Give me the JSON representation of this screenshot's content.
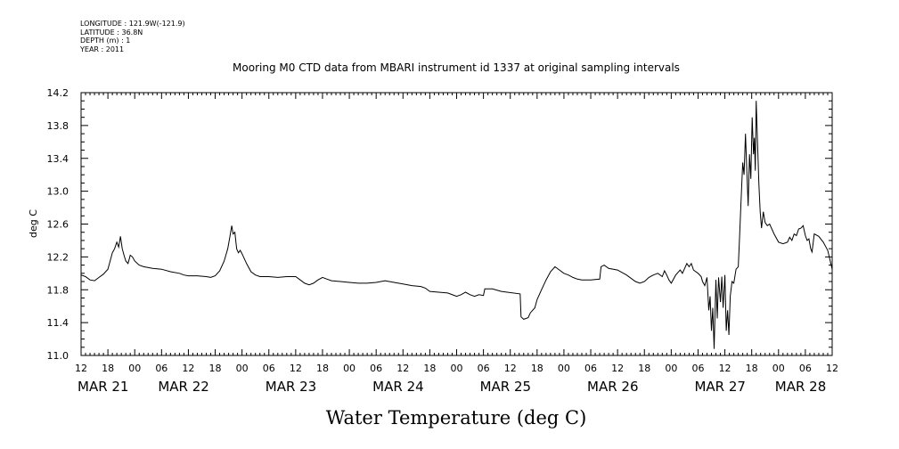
{
  "header_info": [
    "LONGITUDE : 121.9W(-121.9)",
    "LATITUDE : 36.8N",
    "DEPTH (m) : 1",
    "YEAR : 2011"
  ],
  "chart_data": {
    "type": "line",
    "title": "Mooring M0 CTD data from MBARI instrument id 1337 at original sampling intervals",
    "subtitle": "Water Temperature (deg C)",
    "ylabel": "deg C",
    "ylim": [
      11.0,
      14.2
    ],
    "yticks": [
      "11.0",
      "11.4",
      "11.8",
      "12.2",
      "12.6",
      "13.0",
      "13.4",
      "13.8",
      "14.2"
    ],
    "xlim": [
      0,
      168
    ],
    "xticks": [
      {
        "h": 0,
        "label": "12"
      },
      {
        "h": 6,
        "label": "18"
      },
      {
        "h": 12,
        "label": "00"
      },
      {
        "h": 18,
        "label": "06"
      },
      {
        "h": 24,
        "label": "12"
      },
      {
        "h": 30,
        "label": "18"
      },
      {
        "h": 36,
        "label": "00"
      },
      {
        "h": 42,
        "label": "06"
      },
      {
        "h": 48,
        "label": "12"
      },
      {
        "h": 54,
        "label": "18"
      },
      {
        "h": 60,
        "label": "00"
      },
      {
        "h": 66,
        "label": "06"
      },
      {
        "h": 72,
        "label": "12"
      },
      {
        "h": 78,
        "label": "18"
      },
      {
        "h": 84,
        "label": "00"
      },
      {
        "h": 90,
        "label": "06"
      },
      {
        "h": 96,
        "label": "12"
      },
      {
        "h": 102,
        "label": "18"
      },
      {
        "h": 108,
        "label": "00"
      },
      {
        "h": 114,
        "label": "06"
      },
      {
        "h": 120,
        "label": "12"
      },
      {
        "h": 126,
        "label": "18"
      },
      {
        "h": 132,
        "label": "00"
      },
      {
        "h": 138,
        "label": "06"
      },
      {
        "h": 144,
        "label": "12"
      },
      {
        "h": 150,
        "label": "18"
      },
      {
        "h": 156,
        "label": "00"
      },
      {
        "h": 162,
        "label": "06"
      },
      {
        "h": 168,
        "label": "12"
      }
    ],
    "date_labels": [
      {
        "h": 0,
        "label": "MAR 21"
      },
      {
        "h": 18,
        "label": "MAR 22"
      },
      {
        "h": 42,
        "label": "MAR 23"
      },
      {
        "h": 66,
        "label": "MAR 24"
      },
      {
        "h": 90,
        "label": "MAR 25"
      },
      {
        "h": 114,
        "label": "MAR 26"
      },
      {
        "h": 138,
        "label": "MAR 27"
      },
      {
        "h": 156,
        "label": "MAR 28"
      }
    ],
    "x_units": "hours since 2011-03-21 12:00",
    "series": [
      {
        "color": "#000000",
        "points": [
          [
            0,
            11.98
          ],
          [
            1,
            11.96
          ],
          [
            2,
            11.92
          ],
          [
            3,
            11.91
          ],
          [
            4,
            11.95
          ],
          [
            5,
            11.99
          ],
          [
            6,
            12.05
          ],
          [
            7,
            12.25
          ],
          [
            7.5,
            12.3
          ],
          [
            8,
            12.38
          ],
          [
            8.4,
            12.32
          ],
          [
            8.8,
            12.45
          ],
          [
            9.2,
            12.3
          ],
          [
            9.6,
            12.22
          ],
          [
            10,
            12.15
          ],
          [
            10.5,
            12.12
          ],
          [
            11,
            12.22
          ],
          [
            11.5,
            12.2
          ],
          [
            12,
            12.15
          ],
          [
            13,
            12.1
          ],
          [
            14,
            12.08
          ],
          [
            16,
            12.06
          ],
          [
            18,
            12.05
          ],
          [
            20,
            12.02
          ],
          [
            22,
            12.0
          ],
          [
            23,
            11.98
          ],
          [
            24,
            11.97
          ],
          [
            26,
            11.97
          ],
          [
            28,
            11.96
          ],
          [
            29,
            11.95
          ],
          [
            30,
            11.97
          ],
          [
            31,
            12.03
          ],
          [
            32,
            12.15
          ],
          [
            32.8,
            12.3
          ],
          [
            33.3,
            12.45
          ],
          [
            33.7,
            12.58
          ],
          [
            34,
            12.48
          ],
          [
            34.4,
            12.5
          ],
          [
            34.8,
            12.3
          ],
          [
            35.2,
            12.25
          ],
          [
            35.6,
            12.28
          ],
          [
            36,
            12.24
          ],
          [
            37,
            12.12
          ],
          [
            38,
            12.02
          ],
          [
            39,
            11.98
          ],
          [
            40,
            11.96
          ],
          [
            42,
            11.96
          ],
          [
            44,
            11.95
          ],
          [
            46,
            11.96
          ],
          [
            48,
            11.96
          ],
          [
            49,
            11.92
          ],
          [
            50,
            11.88
          ],
          [
            51,
            11.86
          ],
          [
            52,
            11.88
          ],
          [
            53,
            11.92
          ],
          [
            54,
            11.95
          ],
          [
            55,
            11.93
          ],
          [
            56,
            11.91
          ],
          [
            58,
            11.9
          ],
          [
            60,
            11.89
          ],
          [
            62,
            11.88
          ],
          [
            64,
            11.88
          ],
          [
            66,
            11.89
          ],
          [
            68,
            11.91
          ],
          [
            70,
            11.89
          ],
          [
            72,
            11.87
          ],
          [
            74,
            11.85
          ],
          [
            76,
            11.84
          ],
          [
            77,
            11.82
          ],
          [
            78,
            11.78
          ],
          [
            80,
            11.77
          ],
          [
            82,
            11.76
          ],
          [
            84,
            11.72
          ],
          [
            85,
            11.74
          ],
          [
            86,
            11.77
          ],
          [
            87,
            11.74
          ],
          [
            88,
            11.72
          ],
          [
            89,
            11.74
          ],
          [
            90,
            11.73
          ],
          [
            90.3,
            11.81
          ],
          [
            92,
            11.81
          ],
          [
            94,
            11.78
          ],
          [
            98.2,
            11.75
          ],
          [
            98.4,
            11.47
          ],
          [
            99,
            11.44
          ],
          [
            100,
            11.46
          ],
          [
            100.5,
            11.52
          ],
          [
            101.5,
            11.58
          ],
          [
            102,
            11.68
          ],
          [
            103,
            11.8
          ],
          [
            104,
            11.92
          ],
          [
            105,
            12.02
          ],
          [
            106,
            12.08
          ],
          [
            107,
            12.04
          ],
          [
            108,
            12.0
          ],
          [
            109,
            11.98
          ],
          [
            110,
            11.95
          ],
          [
            111,
            11.93
          ],
          [
            112,
            11.92
          ],
          [
            113,
            11.92
          ],
          [
            114,
            11.92
          ],
          [
            116,
            11.93
          ],
          [
            116.3,
            12.08
          ],
          [
            117,
            12.1
          ],
          [
            118,
            12.06
          ],
          [
            120,
            12.04
          ],
          [
            122,
            11.98
          ],
          [
            124,
            11.9
          ],
          [
            125,
            11.88
          ],
          [
            126,
            11.9
          ],
          [
            127,
            11.95
          ],
          [
            128,
            11.98
          ],
          [
            129,
            12.0
          ],
          [
            130,
            11.96
          ],
          [
            130.5,
            12.03
          ],
          [
            131,
            11.98
          ],
          [
            131.5,
            11.92
          ],
          [
            132,
            11.88
          ],
          [
            133,
            11.98
          ],
          [
            134,
            12.04
          ],
          [
            134.5,
            12.0
          ],
          [
            135,
            12.06
          ],
          [
            135.5,
            12.12
          ],
          [
            136,
            12.08
          ],
          [
            136.5,
            12.12
          ],
          [
            137,
            12.04
          ],
          [
            138,
            12.0
          ],
          [
            138.7,
            11.96
          ],
          [
            139,
            11.9
          ],
          [
            139.5,
            11.85
          ],
          [
            140,
            11.95
          ],
          [
            140.4,
            11.55
          ],
          [
            140.7,
            11.72
          ],
          [
            141,
            11.3
          ],
          [
            141.3,
            11.58
          ],
          [
            141.6,
            11.08
          ],
          [
            142,
            11.92
          ],
          [
            142.3,
            11.45
          ],
          [
            142.6,
            11.95
          ],
          [
            143,
            11.65
          ],
          [
            143.3,
            11.96
          ],
          [
            143.6,
            11.58
          ],
          [
            144,
            11.98
          ],
          [
            144.3,
            11.3
          ],
          [
            144.6,
            11.55
          ],
          [
            144.9,
            11.25
          ],
          [
            145.2,
            11.72
          ],
          [
            145.6,
            11.9
          ],
          [
            146,
            11.88
          ],
          [
            146.5,
            12.05
          ],
          [
            147,
            12.08
          ],
          [
            147.3,
            12.45
          ],
          [
            147.6,
            12.85
          ],
          [
            148,
            13.35
          ],
          [
            148.3,
            13.2
          ],
          [
            148.6,
            13.7
          ],
          [
            148.9,
            13.25
          ],
          [
            149.2,
            12.82
          ],
          [
            149.5,
            13.45
          ],
          [
            149.8,
            13.15
          ],
          [
            150.1,
            13.9
          ],
          [
            150.4,
            13.45
          ],
          [
            150.6,
            13.65
          ],
          [
            150.8,
            13.25
          ],
          [
            151,
            14.1
          ],
          [
            151.3,
            13.6
          ],
          [
            151.6,
            13.1
          ],
          [
            151.9,
            12.75
          ],
          [
            152.2,
            12.55
          ],
          [
            152.6,
            12.75
          ],
          [
            153,
            12.62
          ],
          [
            153.5,
            12.58
          ],
          [
            154,
            12.6
          ],
          [
            155,
            12.48
          ],
          [
            156,
            12.38
          ],
          [
            157,
            12.36
          ],
          [
            158,
            12.38
          ],
          [
            158.5,
            12.44
          ],
          [
            159,
            12.4
          ],
          [
            159.5,
            12.48
          ],
          [
            160,
            12.46
          ],
          [
            160.5,
            12.54
          ],
          [
            161,
            12.55
          ],
          [
            161.5,
            12.58
          ],
          [
            162,
            12.46
          ],
          [
            162.4,
            12.4
          ],
          [
            162.8,
            12.42
          ],
          [
            163.2,
            12.3
          ],
          [
            163.5,
            12.26
          ],
          [
            164,
            12.48
          ],
          [
            165,
            12.45
          ],
          [
            166,
            12.38
          ],
          [
            167,
            12.28
          ],
          [
            168,
            12.05
          ]
        ]
      }
    ]
  }
}
